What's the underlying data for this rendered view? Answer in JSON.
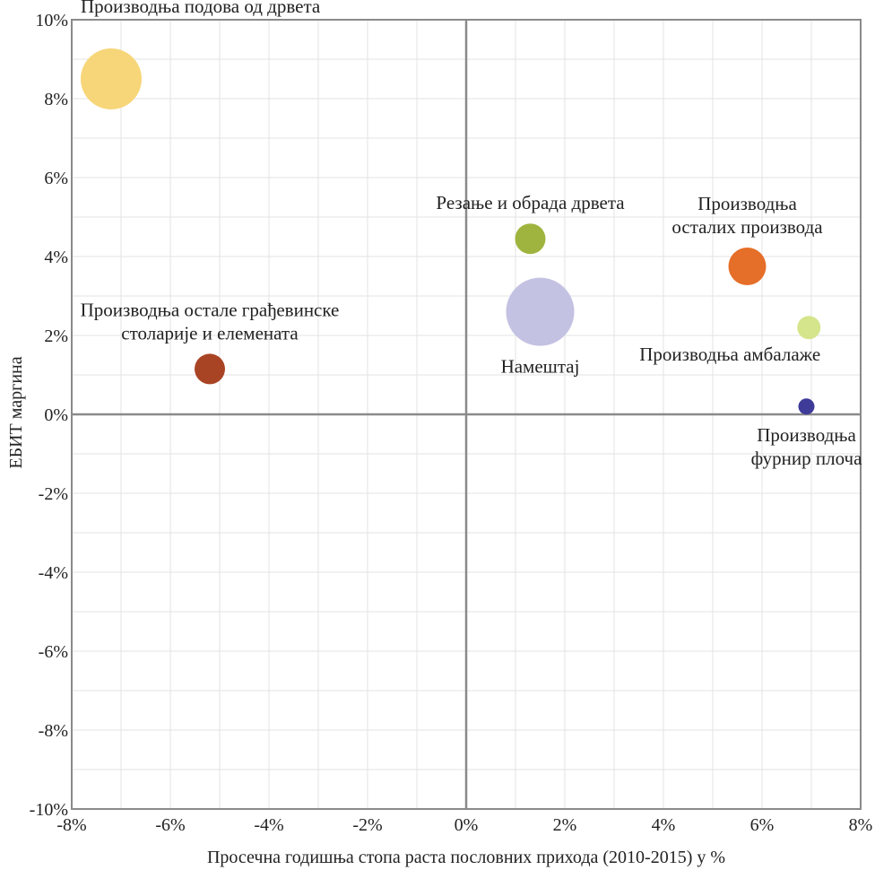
{
  "chart_data": {
    "type": "scatter",
    "xlabel": "Просечна годишња стопа раста пословних прихода (2010-2015) у %",
    "ylabel": "ЕБИТ маргина",
    "xlim": [
      -8,
      8
    ],
    "ylim": [
      -10,
      10
    ],
    "xticks": [
      -8,
      -6,
      -4,
      -2,
      0,
      2,
      4,
      6,
      8
    ],
    "yticks": [
      -10,
      -8,
      -6,
      -4,
      -2,
      0,
      2,
      4,
      6,
      8,
      10
    ],
    "tick_suffix": "%",
    "grid": true,
    "points": [
      {
        "label": [
          "Производња подова од дрвета"
        ],
        "x": -7.2,
        "y": 8.5,
        "size": 34,
        "color": "#f7d679",
        "label_anchor": "above-right"
      },
      {
        "label": [
          "Резање и обрада дрвета"
        ],
        "x": 1.3,
        "y": 4.45,
        "size": 17,
        "color": "#9fb43e",
        "label_anchor": "above"
      },
      {
        "label": [
          "Производња",
          "осталих производа"
        ],
        "x": 5.7,
        "y": 3.75,
        "size": 21,
        "color": "#e56e28",
        "label_anchor": "above"
      },
      {
        "label": [
          "Производња остале грађевинске",
          "столарије и елемената"
        ],
        "x": -5.2,
        "y": 1.15,
        "size": 17,
        "color": "#a84424",
        "label_anchor": "above"
      },
      {
        "label": [
          "Намештај"
        ],
        "x": 1.5,
        "y": 2.6,
        "size": 38,
        "color": "#c3c2e2",
        "label_anchor": "below"
      },
      {
        "label": [
          "Производња амбалаже"
        ],
        "x": 6.95,
        "y": 2.2,
        "size": 13,
        "color": "#d5e58b",
        "label_anchor": "below-left"
      },
      {
        "label": [
          "Производња",
          "фурнир плоча"
        ],
        "x": 6.9,
        "y": 0.2,
        "size": 9,
        "color": "#3f3b99",
        "label_anchor": "below"
      }
    ]
  }
}
